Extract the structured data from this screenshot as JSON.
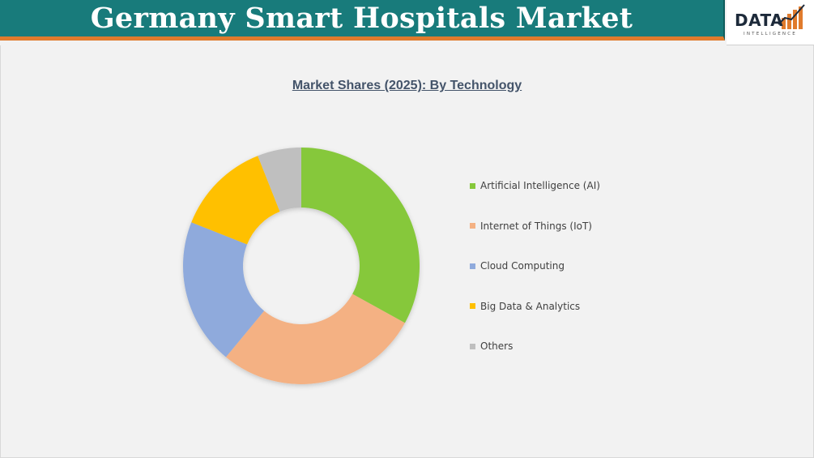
{
  "header": {
    "title": "Germany Smart Hospitals Market",
    "background_color": "#187b7b",
    "accent_color": "#e07b2c"
  },
  "logo": {
    "word": "DATA",
    "subtitle": "INTELLIGENCE"
  },
  "chart_data": {
    "type": "pie",
    "variant": "donut",
    "title": "Market Shares (2025): By Technology",
    "categories": [
      "Artificial Intelligence (AI)",
      "Internet of Things (IoT)",
      "Cloud Computing",
      "Big Data & Analytics",
      "Others"
    ],
    "values": [
      33,
      28,
      20,
      13,
      6
    ],
    "unit": "%",
    "colors": [
      "#86c83b",
      "#f4b183",
      "#8faadc",
      "#ffc000",
      "#bfbfbf"
    ],
    "legend_position": "right",
    "start_angle_deg": 0,
    "direction": "clockwise"
  }
}
